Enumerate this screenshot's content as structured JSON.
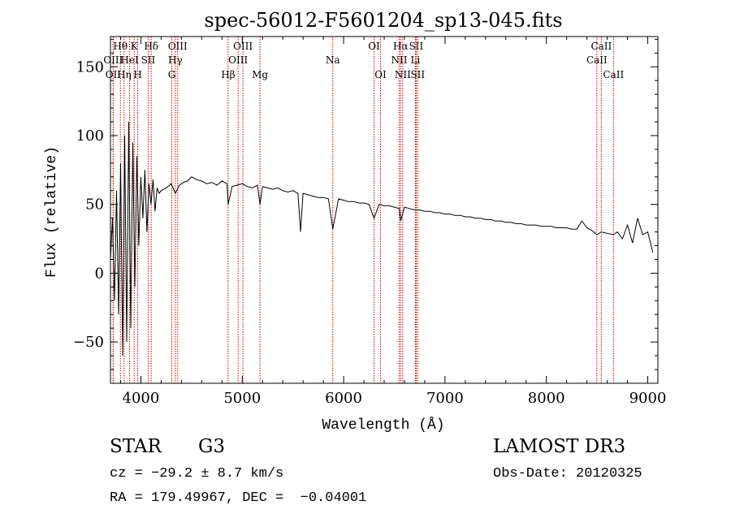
{
  "chart_data": {
    "type": "line",
    "title": "spec-56012-F5601204_sp13-045.fits",
    "xlabel": "Wavelength (Å)",
    "ylabel": "Flux (relative)",
    "xlim": [
      3700,
      9100
    ],
    "ylim": [
      -80,
      172
    ],
    "xticks": [
      4000,
      5000,
      6000,
      7000,
      8000,
      9000
    ],
    "yticks": [
      -50,
      0,
      50,
      100,
      150
    ],
    "grid": false,
    "series": [
      {
        "name": "flux",
        "x": [
          3700,
          3720,
          3740,
          3760,
          3780,
          3800,
          3820,
          3840,
          3860,
          3880,
          3900,
          3920,
          3940,
          3960,
          3980,
          4000,
          4020,
          4040,
          4060,
          4080,
          4100,
          4120,
          4140,
          4160,
          4180,
          4200,
          4250,
          4300,
          4340,
          4380,
          4420,
          4460,
          4500,
          4550,
          4600,
          4650,
          4700,
          4750,
          4800,
          4850,
          4861,
          4900,
          4950,
          5000,
          5050,
          5100,
          5150,
          5175,
          5200,
          5250,
          5300,
          5350,
          5400,
          5450,
          5500,
          5550,
          5575,
          5600,
          5650,
          5700,
          5750,
          5800,
          5850,
          5893,
          5950,
          6000,
          6050,
          6100,
          6150,
          6200,
          6250,
          6300,
          6350,
          6400,
          6450,
          6500,
          6550,
          6563,
          6600,
          6650,
          6700,
          6750,
          6800,
          6850,
          6900,
          6950,
          7000,
          7050,
          7100,
          7150,
          7200,
          7250,
          7300,
          7350,
          7400,
          7450,
          7500,
          7550,
          7600,
          7650,
          7700,
          7750,
          7800,
          7850,
          7900,
          7950,
          8000,
          8050,
          8100,
          8150,
          8200,
          8250,
          8300,
          8350,
          8400,
          8450,
          8498,
          8542,
          8600,
          8662,
          8700,
          8750,
          8800,
          8850,
          8900,
          8950,
          9000,
          9050
        ],
        "y": [
          10,
          40,
          -20,
          60,
          -30,
          80,
          -60,
          100,
          -50,
          110,
          -40,
          95,
          -10,
          85,
          20,
          70,
          40,
          75,
          30,
          65,
          50,
          68,
          45,
          62,
          58,
          60,
          62,
          65,
          58,
          64,
          66,
          67,
          70,
          68,
          67,
          65,
          66,
          64,
          67,
          65,
          50,
          63,
          64,
          65,
          63,
          62,
          64,
          50,
          63,
          62,
          61,
          62,
          60,
          59,
          60,
          58,
          30,
          58,
          57,
          56,
          55,
          55,
          54,
          32,
          54,
          53,
          52,
          52,
          51,
          51,
          50,
          40,
          50,
          49,
          49,
          48,
          47,
          38,
          48,
          47,
          46,
          46,
          45,
          45,
          44,
          44,
          43,
          43,
          42,
          42,
          41,
          41,
          40,
          40,
          39,
          39,
          38,
          38,
          37,
          37,
          36,
          36,
          35,
          35,
          35,
          34,
          34,
          34,
          33,
          33,
          33,
          32,
          32,
          38,
          33,
          31,
          28,
          30,
          29,
          28,
          30,
          25,
          35,
          22,
          40,
          28,
          30,
          15
        ]
      }
    ],
    "lines": [
      {
        "name": "OII",
        "wavelength": 3727,
        "row": 3
      },
      {
        "name": "Hθ",
        "wavelength": 3798,
        "row": 1
      },
      {
        "name": "OIII",
        "wavelength": 3727,
        "row": 2
      },
      {
        "name": "HeI",
        "wavelength": 3889,
        "row": 2
      },
      {
        "name": "Hη",
        "wavelength": 3835,
        "row": 3
      },
      {
        "name": "K",
        "wavelength": 3934,
        "row": 1
      },
      {
        "name": "H",
        "wavelength": 3969,
        "row": 3
      },
      {
        "name": "SII",
        "wavelength": 4072,
        "row": 2
      },
      {
        "name": "Hδ",
        "wavelength": 4102,
        "row": 1
      },
      {
        "name": "OIII",
        "wavelength": 4363,
        "row": 1
      },
      {
        "name": "Hγ",
        "wavelength": 4340,
        "row": 2
      },
      {
        "name": "G",
        "wavelength": 4305,
        "row": 3
      },
      {
        "name": "Hβ",
        "wavelength": 4861,
        "row": 3
      },
      {
        "name": "OIII",
        "wavelength": 5007,
        "row": 1
      },
      {
        "name": "OIII",
        "wavelength": 4959,
        "row": 2
      },
      {
        "name": "Mg",
        "wavelength": 5175,
        "row": 3
      },
      {
        "name": "Na",
        "wavelength": 5893,
        "row": 2
      },
      {
        "name": "OI",
        "wavelength": 6300,
        "row": 1
      },
      {
        "name": "OI",
        "wavelength": 6364,
        "row": 3
      },
      {
        "name": "Hα",
        "wavelength": 6563,
        "row": 1
      },
      {
        "name": "NII",
        "wavelength": 6548,
        "row": 2
      },
      {
        "name": "NII",
        "wavelength": 6583,
        "row": 3
      },
      {
        "name": "SII",
        "wavelength": 6716,
        "row": 1
      },
      {
        "name": "Li",
        "wavelength": 6708,
        "row": 2
      },
      {
        "name": "SII",
        "wavelength": 6731,
        "row": 3
      },
      {
        "name": "CaII",
        "wavelength": 8542,
        "row": 1
      },
      {
        "name": "CaII",
        "wavelength": 8498,
        "row": 2
      },
      {
        "name": "CaII",
        "wavelength": 8662,
        "row": 3
      }
    ],
    "colors": {
      "line_marker": "#cc0000",
      "spectrum": "#000000",
      "axis": "#000000"
    }
  },
  "info": {
    "class": "STAR",
    "subclass": "G3",
    "cz": "cz = −29.2 ± 8.7 km/s",
    "coords": "RA = 179.49967, DEC =  −0.04001",
    "survey": "LAMOST DR3",
    "obs_date": "Obs-Date: 20120325"
  }
}
